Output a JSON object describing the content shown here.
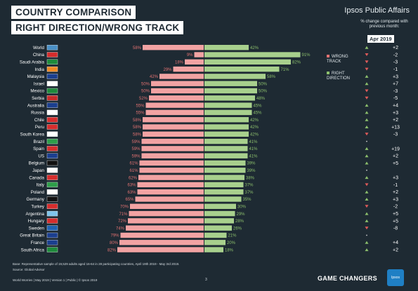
{
  "title_line1": "COUNTRY COMPARISON",
  "title_line2": "RIGHT DIRECTION/WRONG TRACK",
  "brand": "Ipsos Public Affairs",
  "change_header": "% change compared with previous month:",
  "month": "Apr 2019",
  "legend": {
    "wrong": "WRONG TRACK",
    "right": "RIGHT DIRECTION"
  },
  "colors": {
    "wrong": "#f2a3a3",
    "right": "#a8d08d",
    "wrong_label": "#e27272",
    "right_label": "#8cbf6c",
    "up": "#8cbf6c",
    "down": "#e05a5a"
  },
  "footer": {
    "base": "Base: Representative sample of 19,529 adults aged 16-64 in 28 participating countries, April 19th 2019 - May 3rd 2019.",
    "source": "Source: Global Advisor",
    "meta": "World Worries | May 2019 | Version 1 | Public | © Ipsos 2019",
    "page": "3",
    "tagline": "GAME CHANGERS",
    "logo": "Ipsos"
  },
  "chart_data": {
    "type": "bar",
    "categories": [
      "World",
      "China",
      "Saudi Arabia",
      "India",
      "Malaysia",
      "Israel",
      "Mexico",
      "Serbia",
      "Australia",
      "Russia",
      "Chile",
      "Peru",
      "South Korea",
      "Brazil",
      "Spain",
      "US",
      "Belgium",
      "Japan",
      "Canada",
      "Italy",
      "Poland",
      "Germany",
      "Turkey",
      "Argentina",
      "Hungary",
      "Sweden",
      "Great Britain",
      "France",
      "South Africa"
    ],
    "series": [
      {
        "name": "WRONG TRACK",
        "values": [
          58,
          9,
          18,
          29,
          42,
          50,
          50,
          52,
          55,
          55,
          58,
          58,
          58,
          59,
          59,
          59,
          61,
          61,
          62,
          63,
          63,
          65,
          70,
          71,
          72,
          74,
          79,
          80,
          82
        ]
      },
      {
        "name": "RIGHT DIRECTION",
        "values": [
          42,
          91,
          82,
          71,
          58,
          50,
          50,
          48,
          45,
          45,
          42,
          42,
          42,
          41,
          41,
          41,
          39,
          39,
          38,
          37,
          37,
          35,
          30,
          29,
          28,
          26,
          21,
          20,
          18
        ]
      }
    ],
    "change": [
      "+2",
      "-2",
      "-3",
      "-1",
      "+3",
      "+7",
      "-3",
      "-5",
      "+4",
      "+3",
      "+2",
      "+13",
      "-3",
      "",
      "+19",
      "+2",
      "+5",
      "",
      "+3",
      "-1",
      "+2",
      "+3",
      "-2",
      "+5",
      "+5",
      "-8",
      "",
      "+4",
      "+2"
    ],
    "change_direction": [
      "up",
      "down",
      "down",
      "down",
      "up",
      "up",
      "down",
      "down",
      "up",
      "up",
      "up",
      "up",
      "down",
      "flat",
      "up",
      "up",
      "up",
      "flat",
      "up",
      "down",
      "up",
      "up",
      "down",
      "up",
      "up",
      "down",
      "flat",
      "up",
      "up"
    ]
  }
}
